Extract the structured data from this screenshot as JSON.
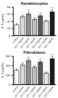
{
  "chart_data": [
    {
      "type": "bar",
      "title": "Keratinocytes",
      "y_label": "IL-6 (pg/mL)",
      "categories": [
        "control",
        "G1 1 mg/mL",
        "G1 5 mg/mL",
        "G2 1 mg/mL",
        "G2 5 mg/mL",
        "G3 1 mg/mL",
        "G3 5 mg/mL"
      ],
      "values": [
        30,
        52,
        60,
        45,
        55,
        40,
        66
      ],
      "errors": [
        3,
        4,
        5,
        4,
        4,
        3,
        5
      ],
      "annotations": [
        null,
        "*",
        "**",
        "*",
        "**",
        null,
        "***"
      ],
      "colors": [
        "#ffffff",
        "#d9d9d9",
        "#8c8c8c",
        "#bfbfbf",
        "#595959",
        "#e6e6e6",
        "#1a1a1a"
      ],
      "ylim": [
        0,
        80
      ],
      "yticks": [
        0,
        20,
        40,
        60,
        80
      ]
    },
    {
      "type": "bar",
      "title": "Fibroblasts",
      "y_label": "IL-6 (pg/mL)",
      "categories": [
        "control",
        "G1 1 mg/mL",
        "G1 5 mg/mL",
        "G2 1 mg/mL",
        "G2 5 mg/mL",
        "G3 1 mg/mL",
        "G3 5 mg/mL"
      ],
      "values": [
        150,
        205,
        250,
        180,
        235,
        120,
        270
      ],
      "errors": [
        12,
        15,
        18,
        14,
        16,
        10,
        20
      ],
      "annotations": [
        null,
        "*",
        "**",
        null,
        "**",
        null,
        "***"
      ],
      "colors": [
        "#ffffff",
        "#d9d9d9",
        "#8c8c8c",
        "#bfbfbf",
        "#595959",
        "#e6e6e6",
        "#1a1a1a"
      ],
      "ylim": [
        0,
        300
      ],
      "yticks": [
        0,
        100,
        200,
        300
      ]
    }
  ]
}
